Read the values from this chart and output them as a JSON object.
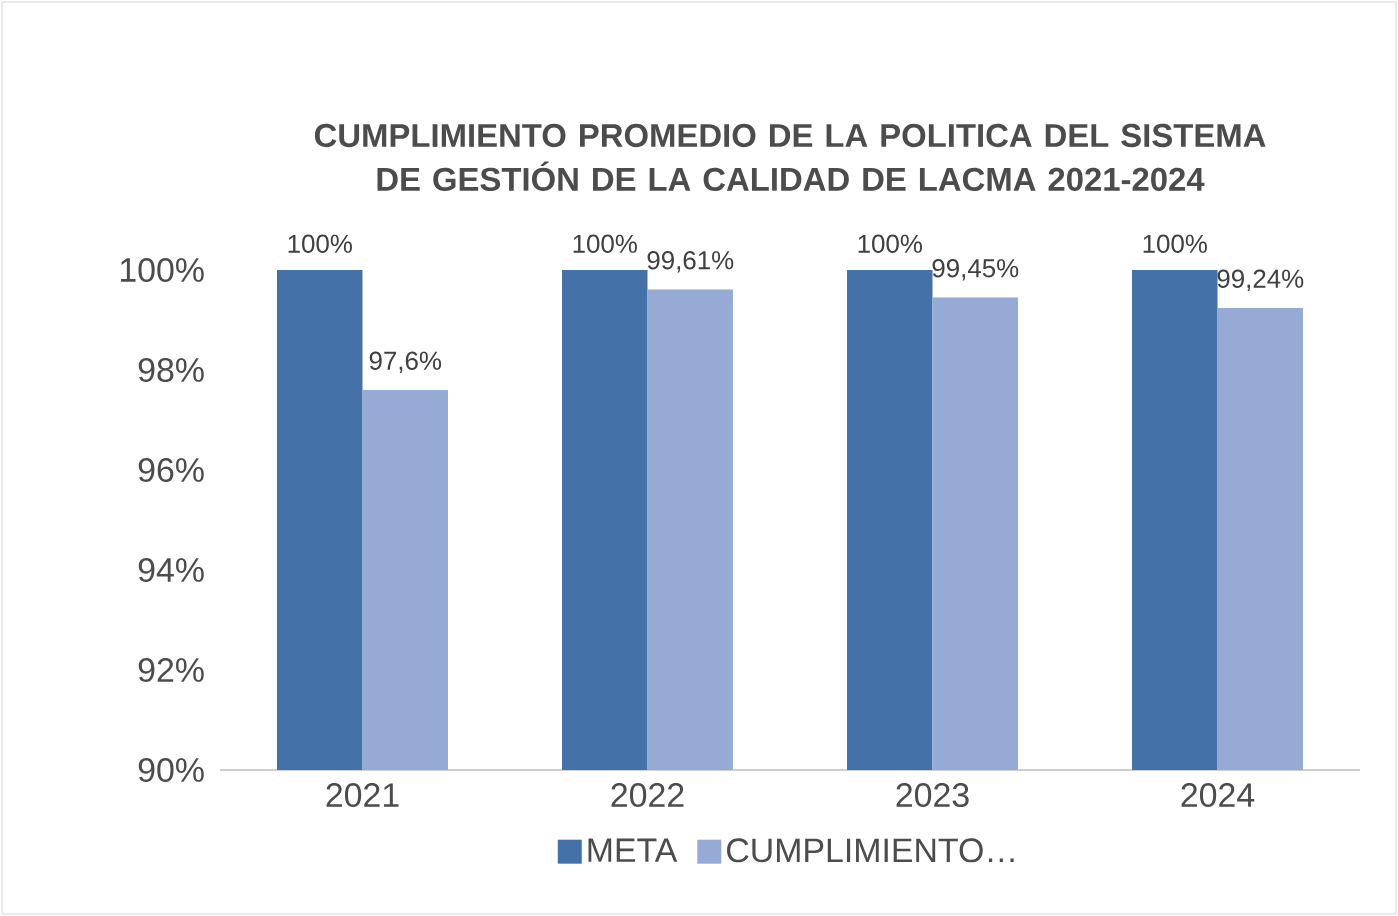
{
  "chart_data": {
    "type": "bar",
    "title": "CUMPLIMIENTO PROMEDIO DE LA POLITICA DEL SISTEMA DE GESTIÓN DE LA CALIDAD DE LACMA 2021-2024",
    "categories": [
      "2021",
      "2022",
      "2023",
      "2024"
    ],
    "series": [
      {
        "name": "META",
        "color": "#4472a8",
        "values": [
          100,
          100,
          100,
          100
        ],
        "value_labels": [
          "100%",
          "100%",
          "100%",
          "100%"
        ]
      },
      {
        "name": "CUMPLIMIENTO…",
        "color": "#95aad4",
        "values": [
          97.6,
          99.61,
          99.45,
          99.24
        ],
        "value_labels": [
          "97,6%",
          "99,61%",
          "99,45%",
          "99,24%"
        ]
      }
    ],
    "ylim": [
      90,
      100
    ],
    "yticks": [
      {
        "value": 90,
        "label": "90%"
      },
      {
        "value": 92,
        "label": "92%"
      },
      {
        "value": 94,
        "label": "94%"
      },
      {
        "value": 96,
        "label": "96%"
      },
      {
        "value": 98,
        "label": "98%"
      },
      {
        "value": 100,
        "label": "100%"
      }
    ],
    "legend": "bottom"
  }
}
